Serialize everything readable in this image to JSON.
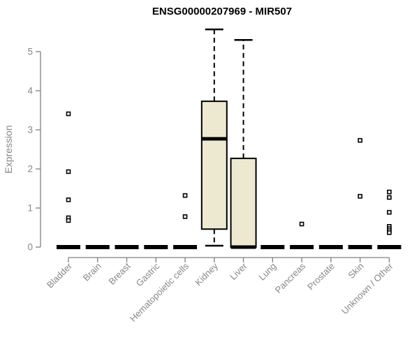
{
  "chart_data": {
    "type": "boxplot",
    "title": "ENSG00000207969 - MIR507",
    "ylabel": "Expression",
    "xlabel": "",
    "ylim": [
      0,
      5
    ],
    "yticks": [
      0,
      1,
      2,
      3,
      4,
      5
    ],
    "grid": false,
    "legend": false,
    "categories": [
      "Bladder",
      "Brain",
      "Breast",
      "Gastric",
      "Hematopoietic cells",
      "Kidney",
      "Liver",
      "Lung",
      "Pancreas",
      "Prostate",
      "Skin",
      "Unknown / Other"
    ],
    "boxes": [
      {
        "category": "Bladder",
        "low": 0,
        "q1": 0,
        "median": 0,
        "q3": 0,
        "high": 0,
        "outliers": [
          3.41,
          1.93,
          1.21,
          0.75,
          0.68
        ]
      },
      {
        "category": "Brain",
        "low": 0,
        "q1": 0,
        "median": 0,
        "q3": 0,
        "high": 0,
        "outliers": []
      },
      {
        "category": "Breast",
        "low": 0,
        "q1": 0,
        "median": 0,
        "q3": 0,
        "high": 0,
        "outliers": []
      },
      {
        "category": "Gastric",
        "low": 0,
        "q1": 0,
        "median": 0,
        "q3": 0,
        "high": 0,
        "outliers": []
      },
      {
        "category": "Hematopoietic cells",
        "low": 0,
        "q1": 0,
        "median": 0,
        "q3": 0,
        "high": 0,
        "outliers": [
          1.32,
          0.78
        ]
      },
      {
        "category": "Kidney",
        "low": 0,
        "q1": 0.46,
        "median": 2.77,
        "q3": 3.73,
        "high": 5.57,
        "outliers": []
      },
      {
        "category": "Liver",
        "low": 0,
        "q1": 0,
        "median": 0,
        "q3": 2.27,
        "high": 5.3,
        "outliers": []
      },
      {
        "category": "Lung",
        "low": 0,
        "q1": 0,
        "median": 0,
        "q3": 0,
        "high": 0,
        "outliers": []
      },
      {
        "category": "Pancreas",
        "low": 0,
        "q1": 0,
        "median": 0,
        "q3": 0,
        "high": 0,
        "outliers": [
          0.59
        ]
      },
      {
        "category": "Prostate",
        "low": 0,
        "q1": 0,
        "median": 0,
        "q3": 0,
        "high": 0,
        "outliers": []
      },
      {
        "category": "Skin",
        "low": 0,
        "q1": 0,
        "median": 0,
        "q3": 0,
        "high": 0,
        "outliers": [
          2.73,
          1.3
        ]
      },
      {
        "category": "Unknown / Other",
        "low": 0,
        "q1": 0,
        "median": 0,
        "q3": 0,
        "high": 0,
        "outliers": [
          1.41,
          1.27,
          0.89,
          0.53,
          0.47,
          0.42,
          0.37
        ]
      }
    ],
    "colors": {
      "background": "#ffffff",
      "box_fill": "#EDE8D0",
      "box_border": "#000000",
      "median": "#000000",
      "whisker": "#000000",
      "outlier": "#000000",
      "axis_line": "#808080",
      "axis_text": "#878787",
      "title_text": "#000000"
    }
  }
}
